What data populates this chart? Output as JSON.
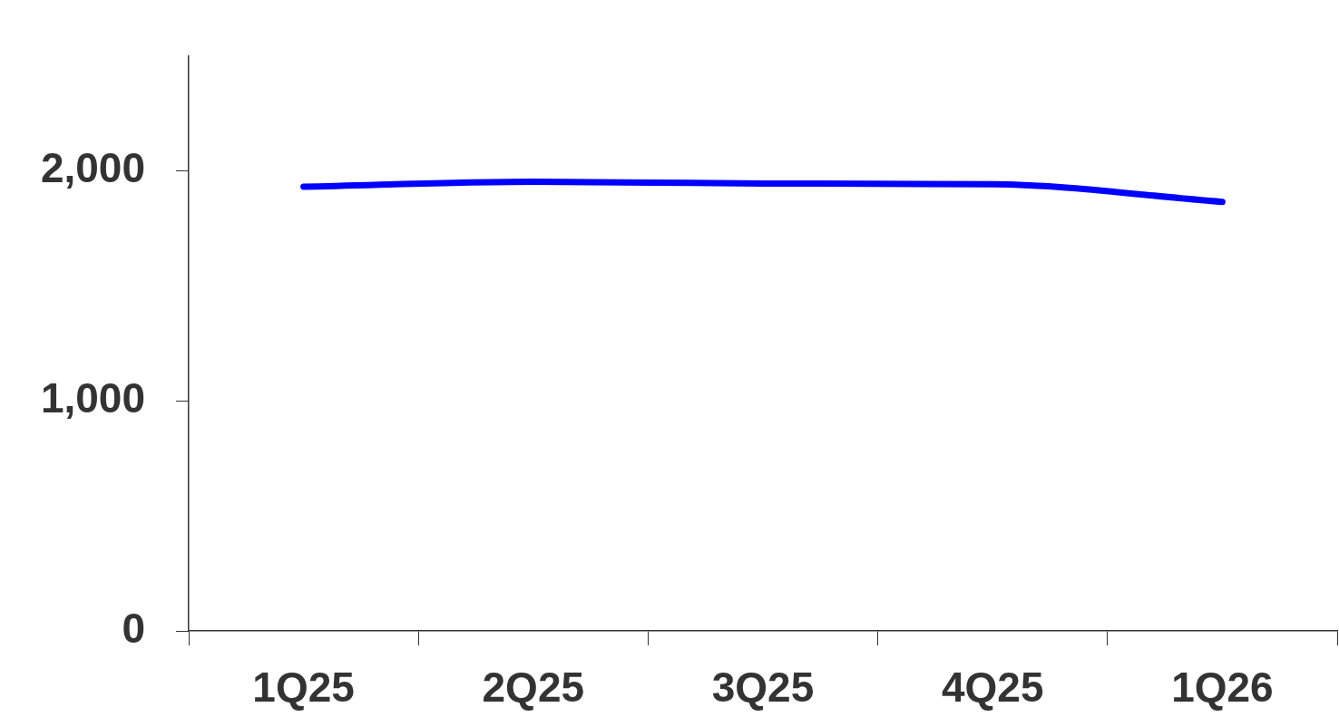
{
  "chart_data": {
    "type": "line",
    "categories": [
      "1Q25",
      "2Q25",
      "3Q25",
      "4Q25",
      "1Q26"
    ],
    "series": [
      {
        "color": "#0000ff",
        "values": [
          1931,
          1953,
          1945,
          1942,
          1865
        ]
      }
    ],
    "ylim": [
      0,
      2500
    ],
    "yticks": [
      0,
      {
        "value": 1000,
        "label": "1,000"
      },
      {
        "value": 2000,
        "label": "2,000"
      }
    ],
    "grid": false,
    "legend": false,
    "marker": "none",
    "line_style": "solid"
  }
}
